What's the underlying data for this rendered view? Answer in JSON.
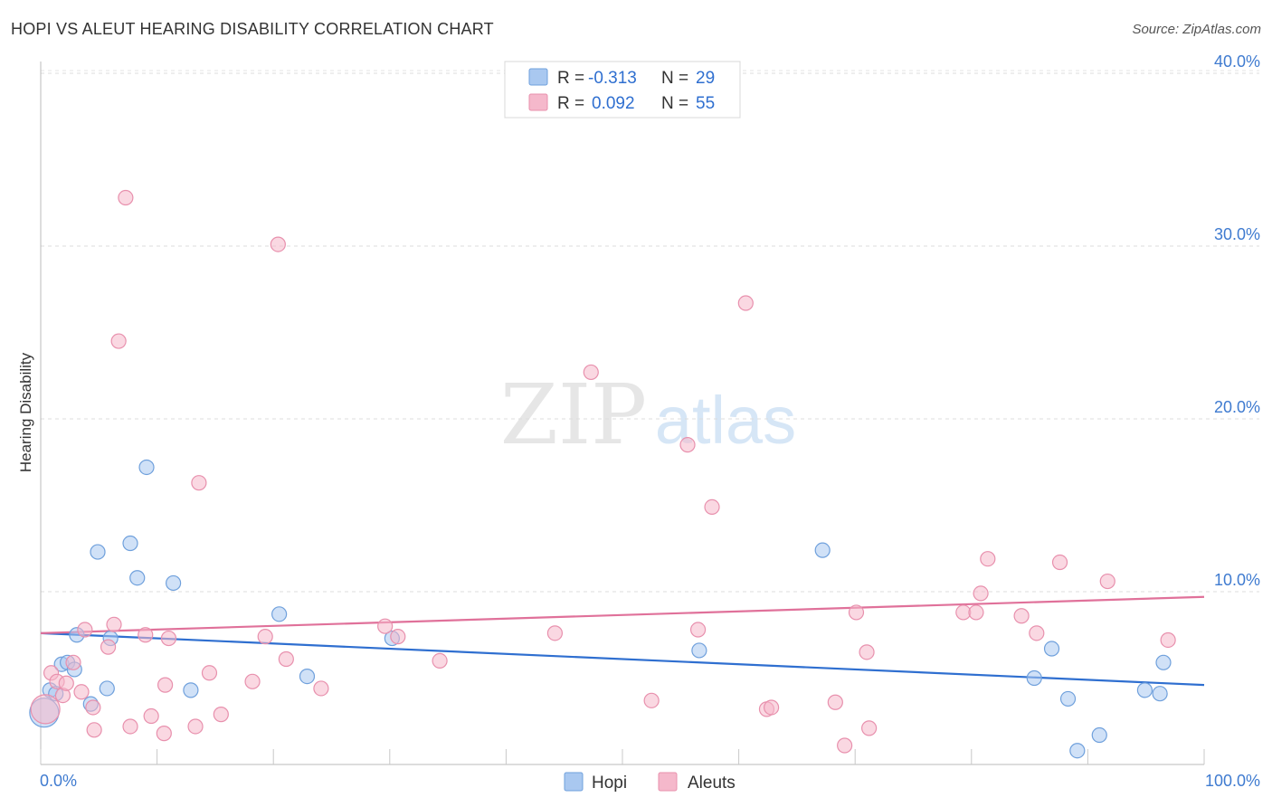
{
  "header": {
    "title": "HOPI VS ALEUT HEARING DISABILITY CORRELATION CHART",
    "source": "Source: ZipAtlas.com"
  },
  "watermark": {
    "zip": "ZIP",
    "atlas": "atlas"
  },
  "legend_box": {
    "rows": [
      {
        "r_label": "R =",
        "r_value": "-0.313",
        "n_label": "N =",
        "n_value": "29",
        "color": "#a9c8f0"
      },
      {
        "r_label": "R =",
        "r_value": "0.092",
        "n_label": "N =",
        "n_value": "55",
        "color": "#f5b8cb"
      }
    ]
  },
  "bottom_legend": [
    {
      "label": "Hopi",
      "color": "#a9c8f0"
    },
    {
      "label": "Aleuts",
      "color": "#f5b8cb"
    }
  ],
  "colors": {
    "hopi_fill": "#a9c8f0",
    "hopi_stroke": "#6fa0dc",
    "hopi_line": "#2f6fd0",
    "aleut_fill": "#f5b8cb",
    "aleut_stroke": "#e890ad",
    "aleut_line": "#e0719a",
    "axis_text": "#3f7bd0"
  },
  "chart_data": {
    "type": "scatter",
    "title": "HOPI VS ALEUT HEARING DISABILITY CORRELATION CHART",
    "xlabel": "",
    "ylabel": "Hearing Disability",
    "xlim": [
      0,
      100
    ],
    "ylim": [
      0,
      42
    ],
    "x_tick_labels": [
      "0.0%",
      "100.0%"
    ],
    "y_ticks": [
      10,
      20,
      30,
      40
    ],
    "y_tick_labels": [
      "10.0%",
      "20.0%",
      "30.0%",
      "40.0%"
    ],
    "grid": "horizontal dashed",
    "legend": "top-center",
    "series": [
      {
        "name": "Hopi",
        "r": -0.313,
        "n": 29,
        "trend": {
          "x": [
            0,
            100
          ],
          "y": [
            7.6,
            4.6
          ]
        },
        "points": [
          {
            "x": 0.3,
            "y": 3.0,
            "big": true
          },
          {
            "x": 0.8,
            "y": 4.3
          },
          {
            "x": 1.3,
            "y": 4.1
          },
          {
            "x": 1.8,
            "y": 5.8
          },
          {
            "x": 2.3,
            "y": 5.9
          },
          {
            "x": 2.9,
            "y": 5.5
          },
          {
            "x": 3.1,
            "y": 7.5
          },
          {
            "x": 4.3,
            "y": 3.5
          },
          {
            "x": 4.9,
            "y": 12.3
          },
          {
            "x": 5.7,
            "y": 4.4
          },
          {
            "x": 6.0,
            "y": 7.3
          },
          {
            "x": 7.7,
            "y": 12.8
          },
          {
            "x": 8.3,
            "y": 10.8
          },
          {
            "x": 9.1,
            "y": 17.2
          },
          {
            "x": 11.4,
            "y": 10.5
          },
          {
            "x": 12.9,
            "y": 4.3
          },
          {
            "x": 20.5,
            "y": 8.7
          },
          {
            "x": 22.9,
            "y": 5.1
          },
          {
            "x": 30.2,
            "y": 7.3
          },
          {
            "x": 56.6,
            "y": 6.6
          },
          {
            "x": 67.2,
            "y": 12.4
          },
          {
            "x": 85.4,
            "y": 5.0
          },
          {
            "x": 86.9,
            "y": 6.7
          },
          {
            "x": 88.3,
            "y": 3.8
          },
          {
            "x": 89.1,
            "y": 0.8
          },
          {
            "x": 91.0,
            "y": 1.7
          },
          {
            "x": 94.9,
            "y": 4.3
          },
          {
            "x": 96.2,
            "y": 4.1
          },
          {
            "x": 96.5,
            "y": 5.9
          }
        ]
      },
      {
        "name": "Aleuts",
        "r": 0.092,
        "n": 55,
        "trend": {
          "x": [
            0,
            100
          ],
          "y": [
            7.6,
            9.7
          ]
        },
        "points": [
          {
            "x": 0.4,
            "y": 3.2,
            "big": true
          },
          {
            "x": 0.9,
            "y": 5.3
          },
          {
            "x": 1.4,
            "y": 4.8
          },
          {
            "x": 1.9,
            "y": 4.0
          },
          {
            "x": 2.2,
            "y": 4.7
          },
          {
            "x": 2.8,
            "y": 5.9
          },
          {
            "x": 3.5,
            "y": 4.2
          },
          {
            "x": 3.8,
            "y": 7.8
          },
          {
            "x": 4.5,
            "y": 3.3
          },
          {
            "x": 4.6,
            "y": 2.0
          },
          {
            "x": 5.8,
            "y": 6.8
          },
          {
            "x": 6.3,
            "y": 8.1
          },
          {
            "x": 6.7,
            "y": 24.5
          },
          {
            "x": 7.3,
            "y": 32.8
          },
          {
            "x": 7.7,
            "y": 2.2
          },
          {
            "x": 9.0,
            "y": 7.5
          },
          {
            "x": 9.5,
            "y": 2.8
          },
          {
            "x": 10.6,
            "y": 1.8
          },
          {
            "x": 10.7,
            "y": 4.6
          },
          {
            "x": 11.0,
            "y": 7.3
          },
          {
            "x": 13.3,
            "y": 2.2
          },
          {
            "x": 13.6,
            "y": 16.3
          },
          {
            "x": 14.5,
            "y": 5.3
          },
          {
            "x": 15.5,
            "y": 2.9
          },
          {
            "x": 18.2,
            "y": 4.8
          },
          {
            "x": 19.3,
            "y": 7.4
          },
          {
            "x": 20.4,
            "y": 30.1
          },
          {
            "x": 21.1,
            "y": 6.1
          },
          {
            "x": 24.1,
            "y": 4.4
          },
          {
            "x": 29.6,
            "y": 8.0
          },
          {
            "x": 30.7,
            "y": 7.4
          },
          {
            "x": 34.3,
            "y": 6.0
          },
          {
            "x": 44.2,
            "y": 7.6
          },
          {
            "x": 47.3,
            "y": 22.7
          },
          {
            "x": 52.5,
            "y": 3.7
          },
          {
            "x": 55.6,
            "y": 18.5
          },
          {
            "x": 56.5,
            "y": 7.8
          },
          {
            "x": 57.7,
            "y": 14.9
          },
          {
            "x": 60.6,
            "y": 26.7
          },
          {
            "x": 62.4,
            "y": 3.2
          },
          {
            "x": 62.8,
            "y": 3.3
          },
          {
            "x": 68.3,
            "y": 3.6
          },
          {
            "x": 69.1,
            "y": 1.1
          },
          {
            "x": 70.1,
            "y": 8.8
          },
          {
            "x": 71.0,
            "y": 6.5
          },
          {
            "x": 71.2,
            "y": 2.1
          },
          {
            "x": 79.3,
            "y": 8.8
          },
          {
            "x": 80.4,
            "y": 8.8
          },
          {
            "x": 80.8,
            "y": 9.9
          },
          {
            "x": 81.4,
            "y": 11.9
          },
          {
            "x": 84.3,
            "y": 8.6
          },
          {
            "x": 85.6,
            "y": 7.6
          },
          {
            "x": 87.6,
            "y": 11.7
          },
          {
            "x": 91.7,
            "y": 10.6
          },
          {
            "x": 96.9,
            "y": 7.2
          }
        ]
      }
    ]
  }
}
